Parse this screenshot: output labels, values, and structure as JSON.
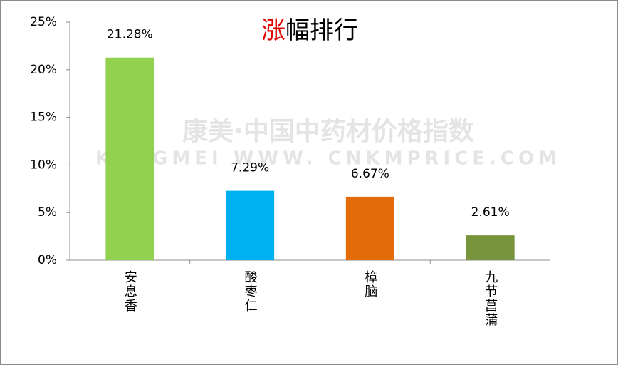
{
  "chart_data": {
    "type": "bar",
    "title": "涨幅排行",
    "watermark": [
      "康美·中国中药材价格指数",
      "KANGMEI WWW. CNKMPRICE.COM"
    ],
    "categories": [
      "安息香",
      "酸枣仁",
      "樟脑",
      "九节菖蒲"
    ],
    "values": [
      21.28,
      7.29,
      6.67,
      2.61
    ],
    "value_labels": [
      "21.28%",
      "7.29%",
      "6.67%",
      "2.61%"
    ],
    "colors": [
      "#92d050",
      "#00b0f0",
      "#e36c09",
      "#77933c"
    ],
    "ylim": [
      0,
      25
    ],
    "yticks": [
      {
        "value": 0,
        "label": "0%"
      },
      {
        "value": 5,
        "label": "5%"
      },
      {
        "value": 10,
        "label": "10%"
      },
      {
        "value": 15,
        "label": "15%"
      },
      {
        "value": 20,
        "label": "20%"
      },
      {
        "value": 25,
        "label": "25%"
      }
    ],
    "grid": false
  }
}
